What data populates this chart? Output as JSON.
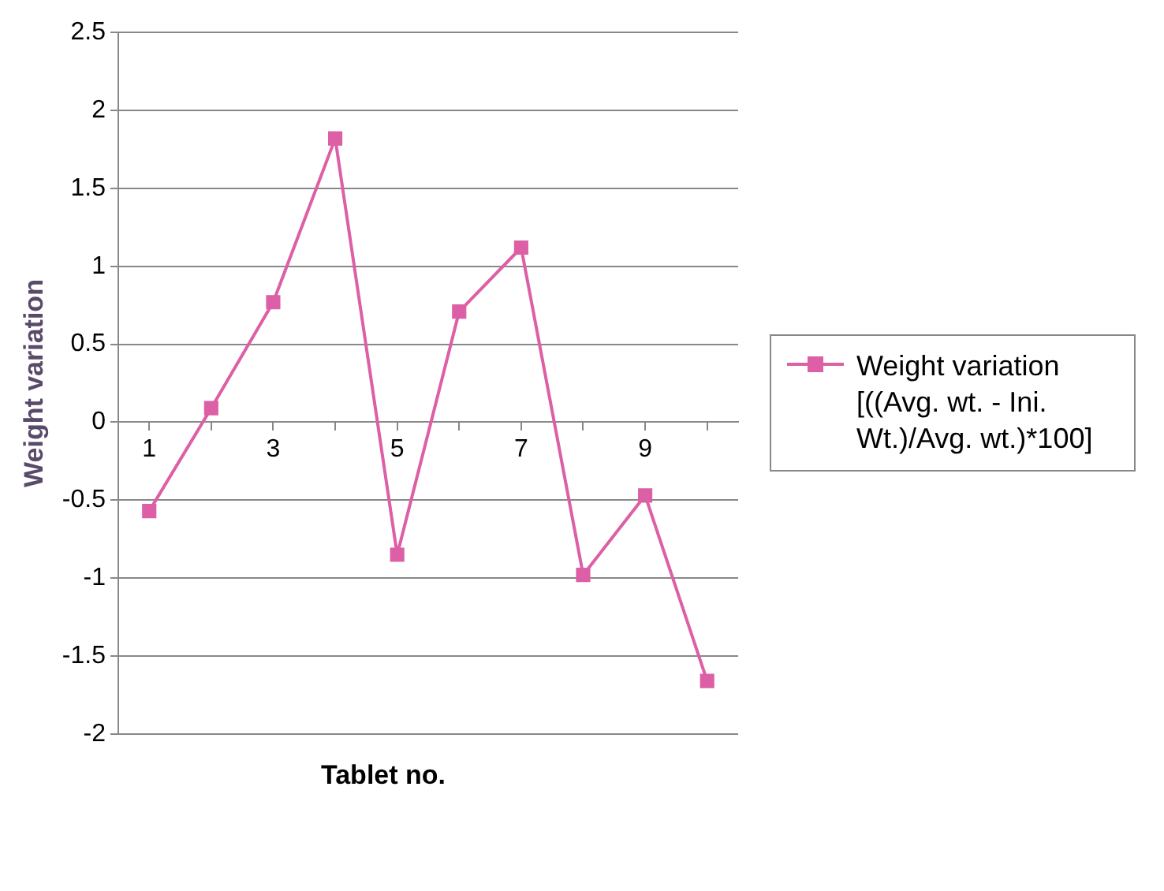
{
  "chart_data": {
    "type": "line",
    "xlabel": "Tablet no.",
    "ylabel": "Weight variation",
    "categories": [
      "1",
      null,
      "3",
      null,
      "5",
      null,
      "7",
      null,
      "9",
      null
    ],
    "series": [
      {
        "name": "Weight variation [((Avg. wt. - Ini. Wt.)/Avg. wt.)*100]",
        "color": "#dd5fa5",
        "values": [
          -0.57,
          0.09,
          0.77,
          1.82,
          -0.85,
          0.71,
          1.12,
          -0.98,
          -0.47,
          -1.66
        ]
      }
    ],
    "ylim": [
      -2,
      2.5
    ],
    "yticks": [
      -2,
      -1.5,
      -1,
      -0.5,
      0,
      0.5,
      1,
      1.5,
      2,
      2.5
    ],
    "grid": "y",
    "legend": "right",
    "marker": "square"
  }
}
